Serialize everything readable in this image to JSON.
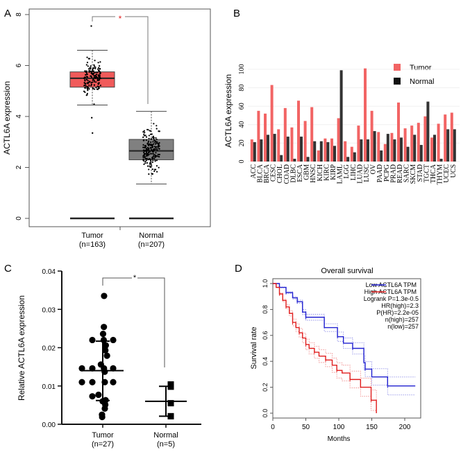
{
  "panels": {
    "a": "A",
    "b": "B",
    "c": "C",
    "d": "D"
  },
  "chart_data": [
    {
      "panel": "A",
      "type": "box",
      "ylabel": "ACTL6A expression",
      "ylim": [
        0,
        8
      ],
      "yticks": [
        "0",
        "2",
        "4",
        "6",
        "8"
      ],
      "significance": "*",
      "categories": [
        "Tumor",
        "Normal"
      ],
      "category_n": [
        "(n=163)",
        "(n=207)"
      ],
      "groups": [
        {
          "name": "Tumor",
          "n": 163,
          "median": 5.5,
          "q1": 5.15,
          "q3": 5.75,
          "whisker_low": 4.45,
          "whisker_high": 6.6,
          "outliers": [
            7.55,
            3.95,
            3.35
          ],
          "color": "#f05a5a"
        },
        {
          "name": "Normal",
          "n": 207,
          "median": 2.65,
          "q1": 2.3,
          "q3": 3.1,
          "whisker_low": 1.35,
          "whisker_high": 4.2,
          "outliers": [],
          "color": "#808080"
        }
      ]
    },
    {
      "panel": "B",
      "type": "bar",
      "ylabel": "ACTL6A expression",
      "ylim": [
        0,
        105
      ],
      "yticks": [
        "0",
        "20",
        "40",
        "60",
        "80",
        "100"
      ],
      "legend_position": "top-right",
      "categories": [
        "ACC",
        "BLCA",
        "BRCA",
        "CESC",
        "CHOL",
        "COAD",
        "DLBC",
        "ESCA",
        "GBM",
        "HNSC",
        "KICH",
        "KIRC",
        "KIRP",
        "LAML",
        "LGG",
        "LIHC",
        "LUAD",
        "LUSC",
        "OV",
        "PAAD",
        "PCPG",
        "PRAD",
        "READ",
        "SARC",
        "SKCM",
        "STAD",
        "TGCT",
        "THCA",
        "THYM",
        "UCEC",
        "UCS"
      ],
      "series": [
        {
          "name": "Tumor",
          "color": "#f26464",
          "values": [
            24,
            55,
            52,
            83,
            35,
            58,
            37,
            66,
            44,
            59,
            12,
            25,
            25,
            47,
            22,
            16,
            39,
            101,
            55,
            32,
            19,
            31,
            64,
            36,
            39,
            42,
            49,
            26,
            41,
            51,
            53
          ]
        },
        {
          "name": "Normal",
          "color": "#333333",
          "values": [
            21,
            24,
            29,
            30,
            7,
            27,
            3,
            27,
            5,
            22,
            22,
            21,
            17,
            99,
            5,
            10,
            24,
            24,
            33,
            12,
            30,
            24,
            26,
            16,
            29,
            18,
            65,
            29,
            3,
            35,
            35
          ]
        }
      ]
    },
    {
      "panel": "C",
      "type": "scatter",
      "ylabel": "Relative ACTL6A expression",
      "ylim": [
        0,
        0.04
      ],
      "yticks": [
        "0.00",
        "0.01",
        "0.02",
        "0.03",
        "0.04"
      ],
      "significance": "*",
      "categories": [
        "Tumor",
        "Normal"
      ],
      "category_n": [
        "(n=27)",
        "(n=5)"
      ],
      "groups": [
        {
          "name": "Tumor",
          "mean": 0.014,
          "sd_low": 0.0062,
          "sd_high": 0.0217,
          "marker": "circle",
          "values": [
            0.0335,
            0.0254,
            0.0236,
            0.022,
            0.022,
            0.022,
            0.0206,
            0.0193,
            0.0179,
            0.0156,
            0.0146,
            0.0146,
            0.0146,
            0.0146,
            0.0137,
            0.011,
            0.011,
            0.011,
            0.011,
            0.0077,
            0.0073,
            0.0063,
            0.006,
            0.0051,
            0.0041,
            0.0025,
            0.0019
          ]
        },
        {
          "name": "Normal",
          "mean": 0.006,
          "sd_low": 0.0021,
          "sd_high": 0.0099,
          "marker": "square",
          "values": [
            0.0104,
            0.0098,
            0.0055,
            0.0021,
            0.0021
          ]
        }
      ]
    },
    {
      "panel": "D",
      "type": "line",
      "title": "Overall survival",
      "xlabel": "Months",
      "ylabel": "Survival rate",
      "xlim": [
        0,
        220
      ],
      "ylim": [
        0,
        1.0
      ],
      "xticks": [
        "0",
        "50",
        "100",
        "150",
        "200"
      ],
      "yticks": [
        "0.0",
        "0.2",
        "0.4",
        "0.6",
        "0.8",
        "1.0"
      ],
      "legend_position": "top-right",
      "annotations": [
        "Logrank P=1.3e-0.5",
        "HR(high)=2.3",
        "P(HR)=2.2e-05",
        "n(high)=257",
        "n(low)=257"
      ],
      "series": [
        {
          "name": "Low ACTL6A TPM",
          "color": "#1f1fd0",
          "step": true,
          "x": [
            0,
            10,
            20,
            30,
            37,
            45,
            50,
            78,
            98,
            107,
            121,
            138,
            140,
            150,
            174,
            216
          ],
          "y": [
            1.0,
            0.97,
            0.93,
            0.89,
            0.86,
            0.78,
            0.74,
            0.66,
            0.59,
            0.54,
            0.5,
            0.39,
            0.34,
            0.28,
            0.21,
            0.21
          ]
        },
        {
          "name": "High ACTL6A TPM",
          "color": "#e01b1b",
          "step": true,
          "x": [
            0,
            5,
            10,
            15,
            20,
            25,
            30,
            35,
            40,
            45,
            50,
            55,
            63,
            70,
            80,
            90,
            97,
            105,
            117,
            133,
            149,
            157
          ],
          "y": [
            1.0,
            0.97,
            0.92,
            0.87,
            0.82,
            0.77,
            0.7,
            0.66,
            0.62,
            0.58,
            0.53,
            0.5,
            0.47,
            0.44,
            0.41,
            0.37,
            0.33,
            0.31,
            0.26,
            0.2,
            0.1,
            0.0
          ]
        }
      ]
    }
  ]
}
